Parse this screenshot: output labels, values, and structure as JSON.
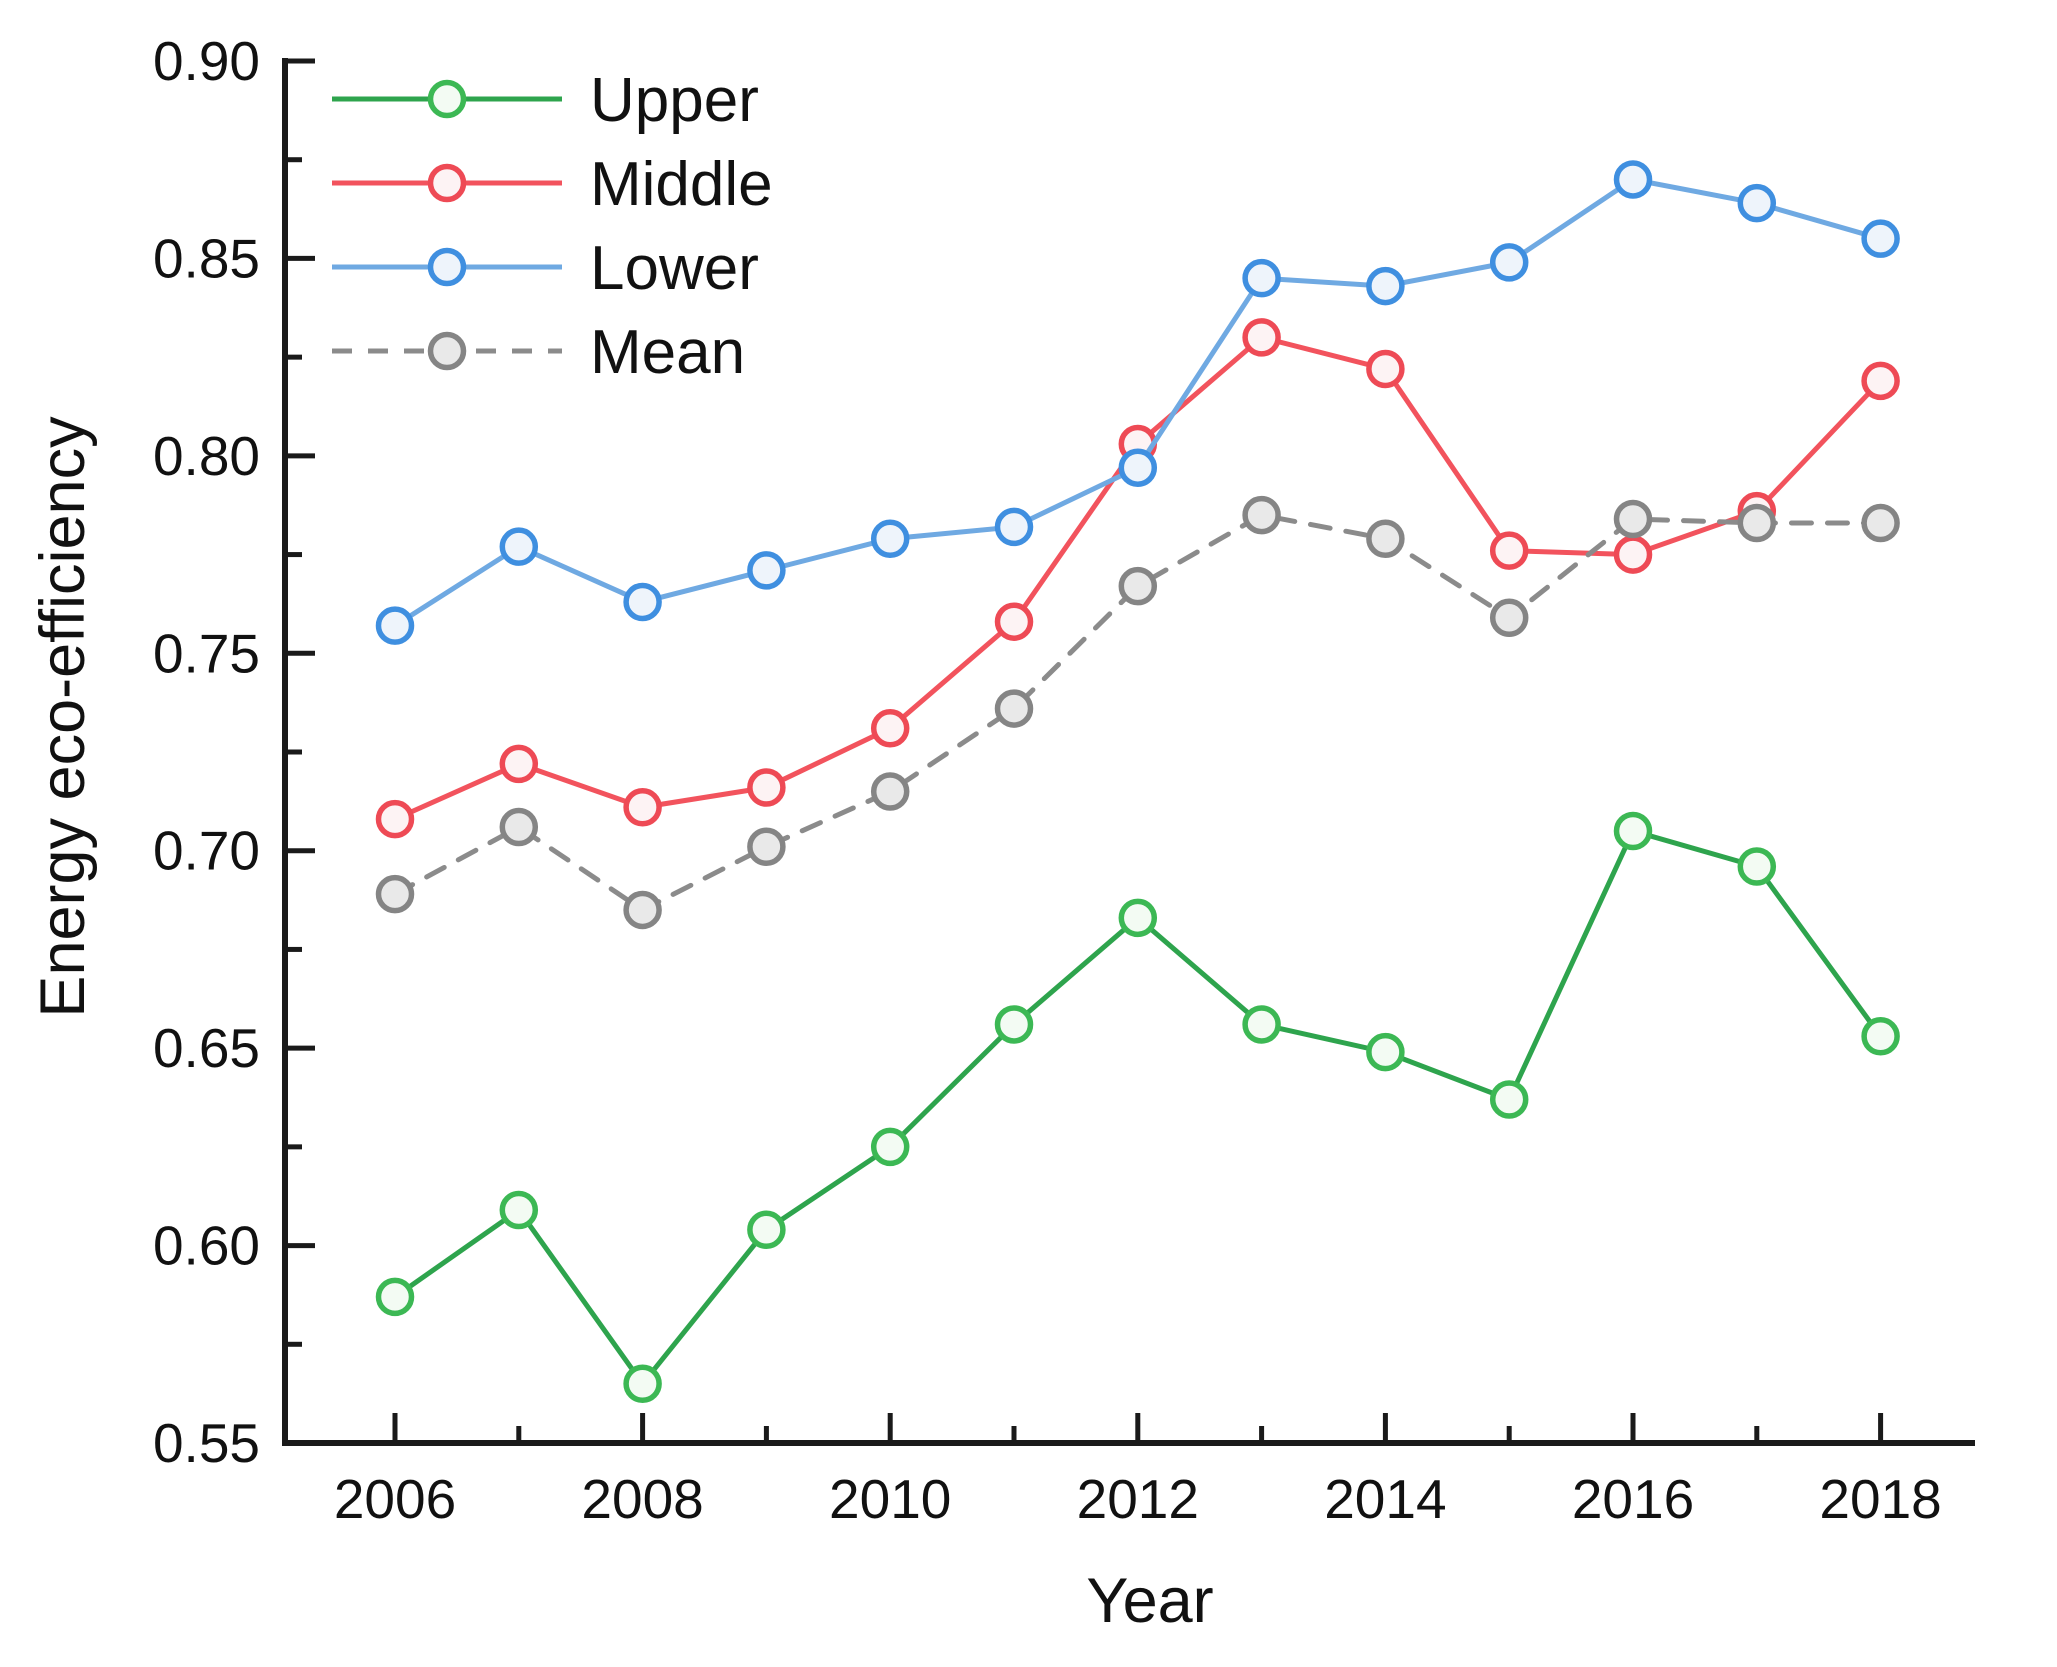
{
  "figure": {
    "background": "#ffffff"
  },
  "chart_data": {
    "type": "line",
    "title": "",
    "xlabel": "Year",
    "ylabel": "Energy eco-efficiency",
    "x": [
      2006,
      2007,
      2008,
      2009,
      2010,
      2011,
      2012,
      2013,
      2014,
      2015,
      2016,
      2017,
      2018
    ],
    "xtick_labeled_years": [
      2006,
      2008,
      2010,
      2012,
      2014,
      2016,
      2018
    ],
    "ylim": [
      0.55,
      0.9
    ],
    "ytick_major_step": 0.05,
    "ytick_minor_step": 0.025,
    "ytick_labels": [
      "0.90",
      "0.85",
      "0.80",
      "0.75",
      "0.70",
      "0.65",
      "0.60",
      "0.55"
    ],
    "grid": false,
    "legend_position": "top-left",
    "axis_color": "#1a1a1a",
    "series": [
      {
        "name": "Upper",
        "line_color": "#2EA44D",
        "marker_color": "#3CB854",
        "marker_fill": "#f3fbf3",
        "dash": null,
        "values": [
          0.587,
          0.609,
          0.565,
          0.604,
          0.625,
          0.656,
          0.683,
          0.656,
          0.649,
          0.637,
          0.705,
          0.696,
          0.653
        ]
      },
      {
        "name": "Middle",
        "line_color": "#F2535D",
        "marker_color": "#EE4A55",
        "marker_fill": "#fdf3f4",
        "dash": null,
        "values": [
          0.708,
          0.722,
          0.711,
          0.716,
          0.731,
          0.758,
          0.803,
          0.83,
          0.822,
          0.776,
          0.775,
          0.786,
          0.819
        ]
      },
      {
        "name": "Lower",
        "line_color": "#6FA9E2",
        "marker_color": "#3F8FE0",
        "marker_fill": "#eef4fb",
        "dash": null,
        "values": [
          0.757,
          0.777,
          0.763,
          0.771,
          0.779,
          0.782,
          0.797,
          0.845,
          0.843,
          0.849,
          0.87,
          0.864,
          0.855
        ]
      },
      {
        "name": "Mean",
        "line_color": "#8B8B8B",
        "marker_color": "#858585",
        "marker_fill": "#e9e9e9",
        "dash": [
          20,
          16
        ],
        "values": [
          0.689,
          0.706,
          0.685,
          0.701,
          0.715,
          0.736,
          0.767,
          0.785,
          0.779,
          0.759,
          0.784,
          0.783,
          0.783
        ]
      }
    ]
  }
}
